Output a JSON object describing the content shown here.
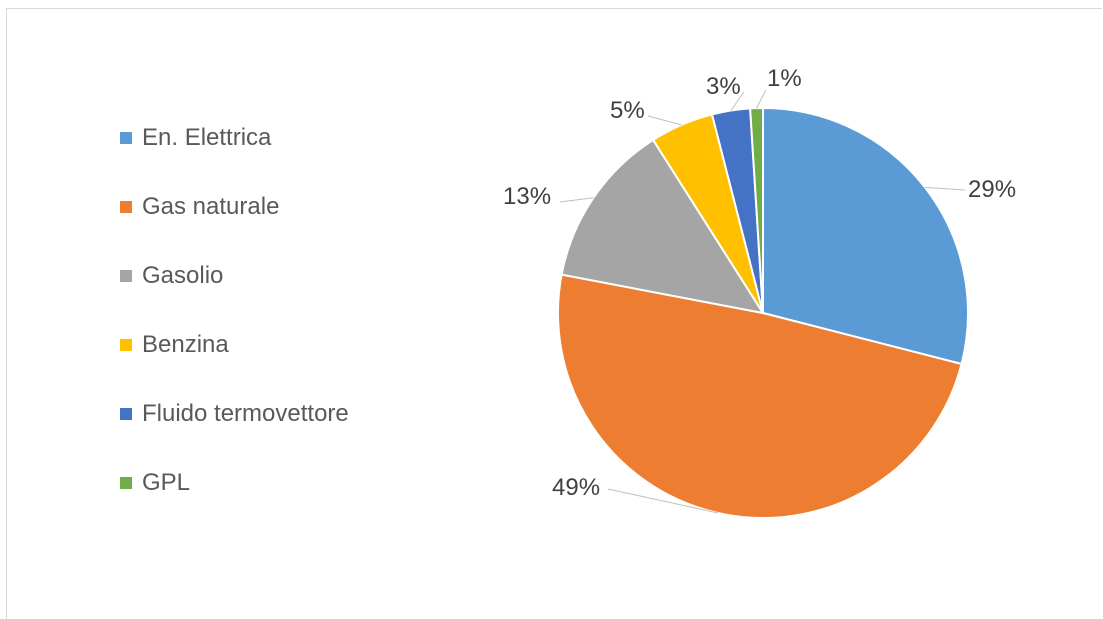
{
  "chart_data": {
    "type": "pie",
    "title": "",
    "legend_position": "left",
    "slices": [
      {
        "label": "En. Elettrica",
        "value": 29,
        "display": "29%",
        "color": "#5b9bd5"
      },
      {
        "label": "Gas naturale",
        "value": 49,
        "display": "49%",
        "color": "#ed7d31"
      },
      {
        "label": "Gasolio",
        "value": 13,
        "display": "13%",
        "color": "#a5a5a5"
      },
      {
        "label": "Benzina",
        "value": 5,
        "display": "5%",
        "color": "#ffc000"
      },
      {
        "label": "Fluido termovettore",
        "value": 3,
        "display": "3%",
        "color": "#4472c4"
      },
      {
        "label": "GPL",
        "value": 1,
        "display": "1%",
        "color": "#70ad47"
      }
    ]
  }
}
